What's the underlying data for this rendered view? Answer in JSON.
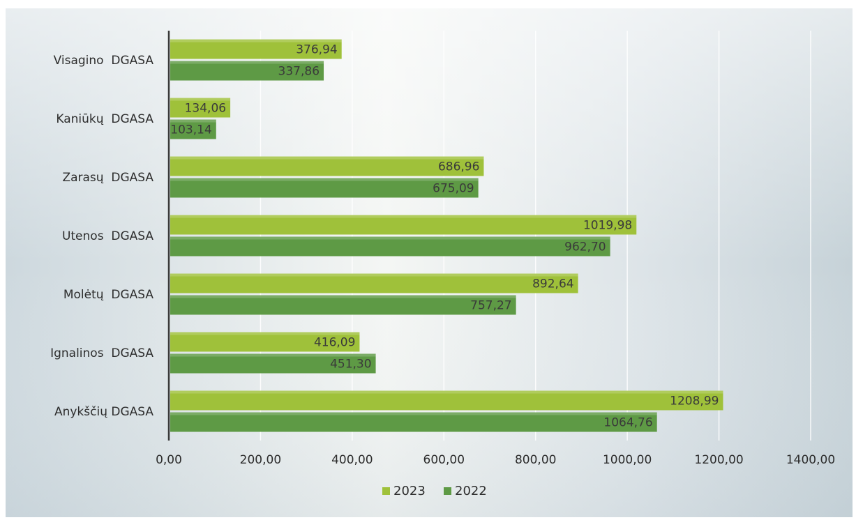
{
  "chart_data": {
    "type": "bar",
    "orientation": "horizontal",
    "categories": [
      "Visagino  DGASA",
      "Kaniūkų  DGASA",
      "Zarasų  DGASA",
      "Utenos  DGASA",
      "Molėtų  DGASA",
      "Ignalinos  DGASA",
      "Anykščių DGASA"
    ],
    "series": [
      {
        "name": "2023",
        "color": "#9fc13a",
        "values": [
          376.94,
          134.06,
          686.96,
          1019.98,
          892.64,
          416.09,
          1208.99
        ],
        "labels": [
          "376,94",
          "134,06",
          "686,96",
          "1019,98",
          "892,64",
          "416,09",
          "1208,99"
        ]
      },
      {
        "name": "2022",
        "color": "#5e9a45",
        "values": [
          337.86,
          103.14,
          675.09,
          962.7,
          757.27,
          451.3,
          1064.76
        ],
        "labels": [
          "337,86",
          "103,14",
          "675,09",
          "962,70",
          "757,27",
          "451,30",
          "1064,76"
        ]
      }
    ],
    "x_ticks": [
      {
        "value": 0,
        "label": "0,00"
      },
      {
        "value": 200,
        "label": "200,00"
      },
      {
        "value": 400,
        "label": "400,00"
      },
      {
        "value": 600,
        "label": "600,00"
      },
      {
        "value": 800,
        "label": "800,00"
      },
      {
        "value": 1000,
        "label": "1000,00"
      },
      {
        "value": 1200,
        "label": "1200,00"
      },
      {
        "value": 1400,
        "label": "1400,00"
      }
    ],
    "xlim": [
      0,
      1400
    ],
    "grid": true,
    "legend": "bottom"
  }
}
